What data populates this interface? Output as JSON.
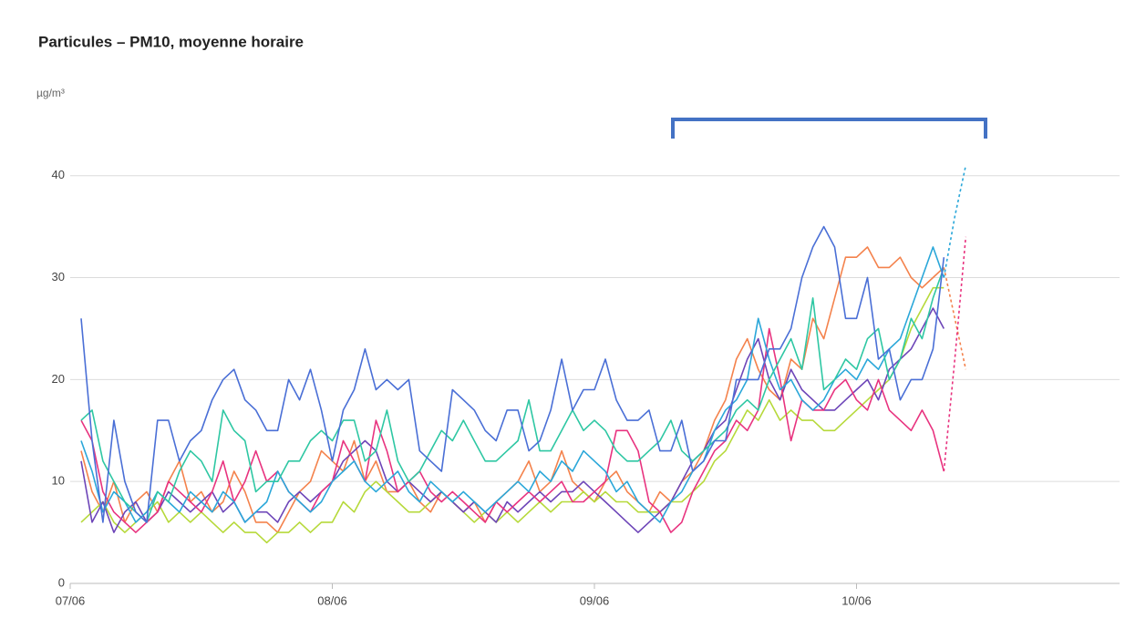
{
  "chart_data": {
    "type": "line",
    "title": "Particules – PM10, moyenne horaire",
    "y_unit": "µg/m³",
    "categories": [
      "07/06",
      null,
      null,
      null,
      null,
      null,
      null,
      null,
      null,
      null,
      null,
      null,
      null,
      null,
      null,
      null,
      null,
      null,
      null,
      null,
      null,
      null,
      null,
      null,
      "08/06",
      null,
      null,
      null,
      null,
      null,
      null,
      null,
      null,
      null,
      null,
      null,
      null,
      null,
      null,
      null,
      null,
      null,
      null,
      null,
      null,
      null,
      null,
      null,
      "09/06",
      null,
      null,
      null,
      null,
      null,
      null,
      null,
      null,
      null,
      null,
      null,
      null,
      null,
      null,
      null,
      null,
      null,
      null,
      null,
      null,
      null,
      null,
      null,
      "10/06",
      null,
      null,
      null,
      null,
      null,
      null,
      null,
      null,
      null,
      null
    ],
    "ylim": [
      0,
      44
    ],
    "yticks": [
      0,
      10,
      20,
      30,
      40
    ],
    "grid": true,
    "series": [
      {
        "color": "#f4824c",
        "values": [
          null,
          13,
          9,
          7,
          10,
          6,
          8,
          9,
          7,
          10,
          12,
          8,
          9,
          7,
          8,
          11,
          9,
          6,
          6,
          5,
          7,
          9,
          10,
          13,
          12,
          11,
          14,
          10,
          12,
          9,
          9,
          10,
          8,
          7,
          9,
          8,
          7,
          8,
          6,
          8,
          9,
          10,
          12,
          9,
          10,
          13,
          10,
          9,
          8,
          10,
          11,
          9,
          8,
          7,
          9,
          8,
          10,
          11,
          13,
          16,
          18,
          22,
          24,
          21,
          19,
          18,
          22,
          21,
          26,
          24,
          28,
          32,
          32,
          33,
          31,
          31,
          32,
          30,
          29,
          30,
          31,
          null,
          null
        ]
      },
      {
        "color": "#b6d93a",
        "values": [
          null,
          6,
          7,
          8,
          6,
          5,
          6,
          7,
          8,
          6,
          7,
          6,
          7,
          6,
          5,
          6,
          5,
          5,
          4,
          5,
          5,
          6,
          5,
          6,
          6,
          8,
          7,
          9,
          10,
          9,
          8,
          7,
          7,
          8,
          9,
          8,
          7,
          6,
          7,
          6,
          7,
          6,
          7,
          8,
          7,
          8,
          8,
          9,
          8,
          9,
          8,
          8,
          7,
          7,
          7,
          8,
          8,
          9,
          10,
          12,
          13,
          15,
          17,
          16,
          18,
          16,
          17,
          16,
          16,
          15,
          15,
          16,
          17,
          18,
          19,
          20,
          22,
          25,
          27,
          29,
          29,
          null,
          null
        ]
      },
      {
        "color": "#6d45b8",
        "values": [
          null,
          12,
          6,
          8,
          5,
          7,
          8,
          6,
          7,
          9,
          8,
          7,
          8,
          9,
          7,
          8,
          6,
          7,
          7,
          6,
          8,
          9,
          8,
          9,
          10,
          12,
          13,
          14,
          13,
          10,
          9,
          10,
          9,
          8,
          9,
          8,
          7,
          8,
          7,
          6,
          8,
          7,
          8,
          9,
          8,
          9,
          9,
          10,
          9,
          8,
          7,
          6,
          5,
          6,
          7,
          8,
          10,
          12,
          13,
          15,
          16,
          19,
          22,
          24,
          20,
          18,
          21,
          19,
          18,
          17,
          17,
          18,
          19,
          20,
          18,
          21,
          22,
          23,
          25,
          27,
          25,
          null,
          null
        ]
      },
      {
        "color": "#e8337f",
        "values": [
          null,
          16,
          14,
          9,
          7,
          6,
          5,
          6,
          7,
          10,
          9,
          8,
          7,
          9,
          12,
          8,
          10,
          13,
          10,
          11,
          9,
          8,
          7,
          9,
          10,
          14,
          12,
          10,
          16,
          13,
          9,
          10,
          11,
          9,
          8,
          9,
          8,
          7,
          6,
          8,
          7,
          8,
          9,
          8,
          9,
          10,
          8,
          8,
          9,
          10,
          15,
          15,
          13,
          8,
          7,
          5,
          6,
          9,
          11,
          13,
          14,
          16,
          15,
          17,
          25,
          20,
          14,
          18,
          17,
          17,
          19,
          20,
          18,
          17,
          20,
          17,
          16,
          15,
          17,
          15,
          11,
          null,
          null
        ]
      },
      {
        "color": "#2aa7d9",
        "values": [
          null,
          14,
          11,
          7,
          9,
          8,
          6,
          7,
          9,
          8,
          7,
          9,
          8,
          7,
          9,
          8,
          6,
          7,
          8,
          11,
          9,
          8,
          7,
          8,
          10,
          11,
          12,
          10,
          9,
          10,
          11,
          9,
          8,
          10,
          9,
          8,
          9,
          8,
          7,
          8,
          9,
          10,
          9,
          11,
          10,
          12,
          11,
          13,
          12,
          11,
          9,
          10,
          8,
          7,
          6,
          8,
          9,
          11,
          12,
          15,
          17,
          18,
          20,
          26,
          22,
          19,
          20,
          18,
          17,
          18,
          20,
          21,
          20,
          22,
          21,
          23,
          24,
          27,
          30,
          33,
          30,
          null,
          null
        ]
      },
      {
        "color": "#2ec7a3",
        "values": [
          null,
          16,
          17,
          12,
          10,
          8,
          7,
          6,
          9,
          8,
          11,
          13,
          12,
          10,
          17,
          15,
          14,
          9,
          10,
          10,
          12,
          12,
          14,
          15,
          14,
          16,
          16,
          12,
          13,
          17,
          12,
          10,
          11,
          13,
          15,
          14,
          16,
          14,
          12,
          12,
          13,
          14,
          18,
          13,
          13,
          15,
          17,
          15,
          16,
          15,
          13,
          12,
          12,
          13,
          14,
          16,
          13,
          12,
          13,
          14,
          15,
          17,
          18,
          17,
          20,
          22,
          24,
          21,
          28,
          19,
          20,
          22,
          21,
          24,
          25,
          20,
          22,
          26,
          24,
          28,
          31,
          null,
          null
        ]
      },
      {
        "color": "#4a6fd6",
        "values": [
          null,
          26,
          14,
          6,
          16,
          10,
          7,
          6,
          16,
          16,
          12,
          14,
          15,
          18,
          20,
          21,
          18,
          17,
          15,
          15,
          20,
          18,
          21,
          17,
          12,
          17,
          19,
          23,
          19,
          20,
          19,
          20,
          13,
          12,
          11,
          19,
          18,
          17,
          15,
          14,
          17,
          17,
          13,
          14,
          17,
          22,
          17,
          19,
          19,
          22,
          18,
          16,
          16,
          17,
          13,
          13,
          16,
          11,
          12,
          14,
          14,
          20,
          20,
          20,
          23,
          23,
          25,
          30,
          33,
          35,
          33,
          26,
          26,
          30,
          22,
          23,
          18,
          20,
          20,
          23,
          32,
          null,
          null
        ]
      },
      {
        "color": "#f4824c",
        "dashed": true,
        "values": [
          null,
          null,
          null,
          null,
          null,
          null,
          null,
          null,
          null,
          null,
          null,
          null,
          null,
          null,
          null,
          null,
          null,
          null,
          null,
          null,
          null,
          null,
          null,
          null,
          null,
          null,
          null,
          null,
          null,
          null,
          null,
          null,
          null,
          null,
          null,
          null,
          null,
          null,
          null,
          null,
          null,
          null,
          null,
          null,
          null,
          null,
          null,
          null,
          null,
          null,
          null,
          null,
          null,
          null,
          null,
          null,
          null,
          null,
          null,
          null,
          null,
          null,
          null,
          null,
          null,
          null,
          null,
          null,
          null,
          null,
          null,
          null,
          null,
          null,
          null,
          null,
          null,
          null,
          null,
          null,
          31,
          26,
          21
        ]
      },
      {
        "color": "#e8337f",
        "dashed": true,
        "values": [
          null,
          null,
          null,
          null,
          null,
          null,
          null,
          null,
          null,
          null,
          null,
          null,
          null,
          null,
          null,
          null,
          null,
          null,
          null,
          null,
          null,
          null,
          null,
          null,
          null,
          null,
          null,
          null,
          null,
          null,
          null,
          null,
          null,
          null,
          null,
          null,
          null,
          null,
          null,
          null,
          null,
          null,
          null,
          null,
          null,
          null,
          null,
          null,
          null,
          null,
          null,
          null,
          null,
          null,
          null,
          null,
          null,
          null,
          null,
          null,
          null,
          null,
          null,
          null,
          null,
          null,
          null,
          null,
          null,
          null,
          null,
          null,
          null,
          null,
          null,
          null,
          null,
          null,
          null,
          null,
          11,
          22,
          34
        ]
      },
      {
        "color": "#2aa7d9",
        "dashed": true,
        "values": [
          null,
          null,
          null,
          null,
          null,
          null,
          null,
          null,
          null,
          null,
          null,
          null,
          null,
          null,
          null,
          null,
          null,
          null,
          null,
          null,
          null,
          null,
          null,
          null,
          null,
          null,
          null,
          null,
          null,
          null,
          null,
          null,
          null,
          null,
          null,
          null,
          null,
          null,
          null,
          null,
          null,
          null,
          null,
          null,
          null,
          null,
          null,
          null,
          null,
          null,
          null,
          null,
          null,
          null,
          null,
          null,
          null,
          null,
          null,
          null,
          null,
          null,
          null,
          null,
          null,
          null,
          null,
          null,
          null,
          null,
          null,
          null,
          null,
          null,
          null,
          null,
          null,
          null,
          null,
          null,
          30,
          36,
          41
        ]
      }
    ]
  }
}
